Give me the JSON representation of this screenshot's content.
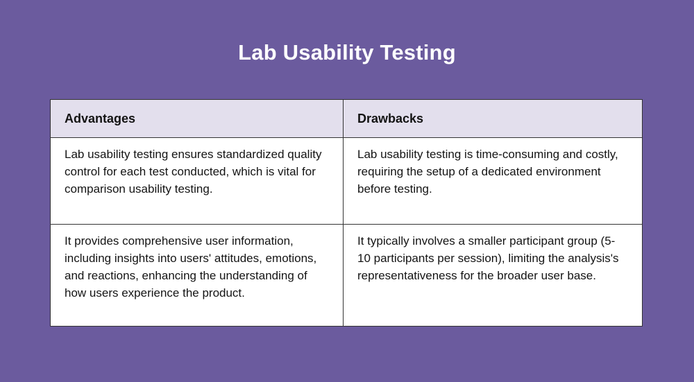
{
  "title": "Lab Usability Testing",
  "colors": {
    "page_bg": "#6B5B9E",
    "header_bg": "#E3DFED",
    "cell_bg": "#FFFFFF",
    "border_color": "#333333",
    "title_color": "#FFFFFF"
  },
  "table": {
    "headers": [
      "Advantages",
      "Drawbacks"
    ],
    "rows": [
      [
        "Lab usability testing ensures standardized quality control for each test conducted, which is vital for comparison usability testing.",
        "Lab usability testing is time-consuming and costly, requiring the setup of a dedicated environment before testing."
      ],
      [
        "It provides comprehensive user information, including insights into users' attitudes, emotions, and reactions, enhancing the understanding of how users experience the product.",
        "It typically involves a smaller participant group (5-10 participants per session), limiting the analysis's representativeness for the broader user base."
      ]
    ]
  }
}
